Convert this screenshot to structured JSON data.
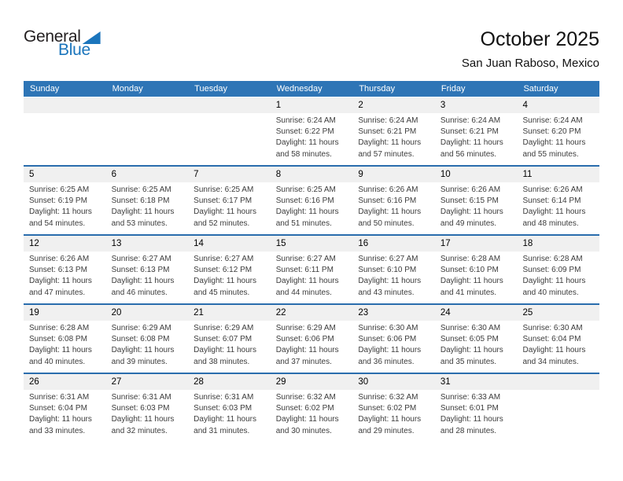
{
  "logo": {
    "part1": "General",
    "part2": "Blue"
  },
  "header": {
    "title": "October 2025",
    "subtitle": "San Juan Raboso, Mexico"
  },
  "colors": {
    "header_bar": "#2E75B6",
    "week_divider": "#2A6DAD",
    "day_band": "#F0F0F0",
    "logo_blue": "#1B75BC",
    "logo_dark": "#231F20",
    "text": "#3C3C3C"
  },
  "calendar": {
    "weekday_headers": [
      "Sunday",
      "Monday",
      "Tuesday",
      "Wednesday",
      "Thursday",
      "Friday",
      "Saturday"
    ],
    "weeks": [
      [
        null,
        null,
        null,
        {
          "day": "1",
          "lines": [
            "Sunrise: 6:24 AM",
            "Sunset: 6:22 PM",
            "Daylight: 11 hours",
            "and 58 minutes."
          ]
        },
        {
          "day": "2",
          "lines": [
            "Sunrise: 6:24 AM",
            "Sunset: 6:21 PM",
            "Daylight: 11 hours",
            "and 57 minutes."
          ]
        },
        {
          "day": "3",
          "lines": [
            "Sunrise: 6:24 AM",
            "Sunset: 6:21 PM",
            "Daylight: 11 hours",
            "and 56 minutes."
          ]
        },
        {
          "day": "4",
          "lines": [
            "Sunrise: 6:24 AM",
            "Sunset: 6:20 PM",
            "Daylight: 11 hours",
            "and 55 minutes."
          ]
        }
      ],
      [
        {
          "day": "5",
          "lines": [
            "Sunrise: 6:25 AM",
            "Sunset: 6:19 PM",
            "Daylight: 11 hours",
            "and 54 minutes."
          ]
        },
        {
          "day": "6",
          "lines": [
            "Sunrise: 6:25 AM",
            "Sunset: 6:18 PM",
            "Daylight: 11 hours",
            "and 53 minutes."
          ]
        },
        {
          "day": "7",
          "lines": [
            "Sunrise: 6:25 AM",
            "Sunset: 6:17 PM",
            "Daylight: 11 hours",
            "and 52 minutes."
          ]
        },
        {
          "day": "8",
          "lines": [
            "Sunrise: 6:25 AM",
            "Sunset: 6:16 PM",
            "Daylight: 11 hours",
            "and 51 minutes."
          ]
        },
        {
          "day": "9",
          "lines": [
            "Sunrise: 6:26 AM",
            "Sunset: 6:16 PM",
            "Daylight: 11 hours",
            "and 50 minutes."
          ]
        },
        {
          "day": "10",
          "lines": [
            "Sunrise: 6:26 AM",
            "Sunset: 6:15 PM",
            "Daylight: 11 hours",
            "and 49 minutes."
          ]
        },
        {
          "day": "11",
          "lines": [
            "Sunrise: 6:26 AM",
            "Sunset: 6:14 PM",
            "Daylight: 11 hours",
            "and 48 minutes."
          ]
        }
      ],
      [
        {
          "day": "12",
          "lines": [
            "Sunrise: 6:26 AM",
            "Sunset: 6:13 PM",
            "Daylight: 11 hours",
            "and 47 minutes."
          ]
        },
        {
          "day": "13",
          "lines": [
            "Sunrise: 6:27 AM",
            "Sunset: 6:13 PM",
            "Daylight: 11 hours",
            "and 46 minutes."
          ]
        },
        {
          "day": "14",
          "lines": [
            "Sunrise: 6:27 AM",
            "Sunset: 6:12 PM",
            "Daylight: 11 hours",
            "and 45 minutes."
          ]
        },
        {
          "day": "15",
          "lines": [
            "Sunrise: 6:27 AM",
            "Sunset: 6:11 PM",
            "Daylight: 11 hours",
            "and 44 minutes."
          ]
        },
        {
          "day": "16",
          "lines": [
            "Sunrise: 6:27 AM",
            "Sunset: 6:10 PM",
            "Daylight: 11 hours",
            "and 43 minutes."
          ]
        },
        {
          "day": "17",
          "lines": [
            "Sunrise: 6:28 AM",
            "Sunset: 6:10 PM",
            "Daylight: 11 hours",
            "and 41 minutes."
          ]
        },
        {
          "day": "18",
          "lines": [
            "Sunrise: 6:28 AM",
            "Sunset: 6:09 PM",
            "Daylight: 11 hours",
            "and 40 minutes."
          ]
        }
      ],
      [
        {
          "day": "19",
          "lines": [
            "Sunrise: 6:28 AM",
            "Sunset: 6:08 PM",
            "Daylight: 11 hours",
            "and 40 minutes."
          ]
        },
        {
          "day": "20",
          "lines": [
            "Sunrise: 6:29 AM",
            "Sunset: 6:08 PM",
            "Daylight: 11 hours",
            "and 39 minutes."
          ]
        },
        {
          "day": "21",
          "lines": [
            "Sunrise: 6:29 AM",
            "Sunset: 6:07 PM",
            "Daylight: 11 hours",
            "and 38 minutes."
          ]
        },
        {
          "day": "22",
          "lines": [
            "Sunrise: 6:29 AM",
            "Sunset: 6:06 PM",
            "Daylight: 11 hours",
            "and 37 minutes."
          ]
        },
        {
          "day": "23",
          "lines": [
            "Sunrise: 6:30 AM",
            "Sunset: 6:06 PM",
            "Daylight: 11 hours",
            "and 36 minutes."
          ]
        },
        {
          "day": "24",
          "lines": [
            "Sunrise: 6:30 AM",
            "Sunset: 6:05 PM",
            "Daylight: 11 hours",
            "and 35 minutes."
          ]
        },
        {
          "day": "25",
          "lines": [
            "Sunrise: 6:30 AM",
            "Sunset: 6:04 PM",
            "Daylight: 11 hours",
            "and 34 minutes."
          ]
        }
      ],
      [
        {
          "day": "26",
          "lines": [
            "Sunrise: 6:31 AM",
            "Sunset: 6:04 PM",
            "Daylight: 11 hours",
            "and 33 minutes."
          ]
        },
        {
          "day": "27",
          "lines": [
            "Sunrise: 6:31 AM",
            "Sunset: 6:03 PM",
            "Daylight: 11 hours",
            "and 32 minutes."
          ]
        },
        {
          "day": "28",
          "lines": [
            "Sunrise: 6:31 AM",
            "Sunset: 6:03 PM",
            "Daylight: 11 hours",
            "and 31 minutes."
          ]
        },
        {
          "day": "29",
          "lines": [
            "Sunrise: 6:32 AM",
            "Sunset: 6:02 PM",
            "Daylight: 11 hours",
            "and 30 minutes."
          ]
        },
        {
          "day": "30",
          "lines": [
            "Sunrise: 6:32 AM",
            "Sunset: 6:02 PM",
            "Daylight: 11 hours",
            "and 29 minutes."
          ]
        },
        {
          "day": "31",
          "lines": [
            "Sunrise: 6:33 AM",
            "Sunset: 6:01 PM",
            "Daylight: 11 hours",
            "and 28 minutes."
          ]
        },
        null
      ]
    ]
  }
}
